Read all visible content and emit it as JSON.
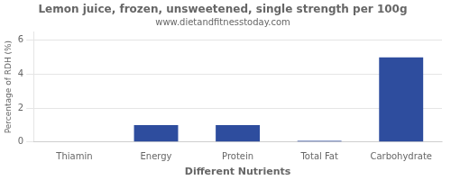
{
  "chart_data": {
    "type": "bar",
    "title": "Lemon juice, frozen, unsweetened, single strength per 100g",
    "subtitle": "www.dietandfitnesstoday.com",
    "xlabel": "Different Nutrients",
    "ylabel": "Percentage of RDH (%)",
    "categories": [
      "Thiamin",
      "Energy",
      "Protein",
      "Total Fat",
      "Carbohydrate"
    ],
    "values": [
      0.0,
      1.0,
      1.0,
      0.07,
      5.0
    ],
    "color": "#2e4d9e",
    "ylim": [
      0,
      6.5
    ],
    "yticks": [
      0,
      2,
      4,
      6
    ],
    "grid": true
  }
}
